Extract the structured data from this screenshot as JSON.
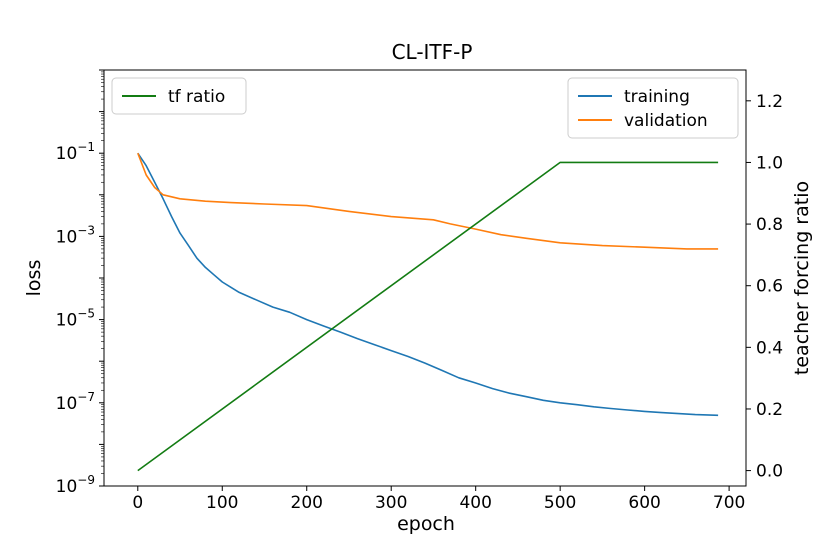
{
  "chart_data": {
    "type": "line",
    "title": "CL-ITF-P",
    "xlabel": "epoch",
    "ylabel_left": "loss",
    "ylabel_right": "teacher forcing ratio",
    "xlim": [
      -40,
      720
    ],
    "xticks": [
      0,
      100,
      200,
      300,
      400,
      500,
      600,
      700
    ],
    "xtick_labels": [
      "0",
      "100",
      "200",
      "300",
      "400",
      "500",
      "600",
      "700"
    ],
    "yscale_left": "log",
    "ylim_left": [
      1e-09,
      10
    ],
    "yticks_left_exponents": [
      -9,
      -7,
      -5,
      -3,
      -1
    ],
    "ylim_right": [
      -0.05,
      1.3
    ],
    "yticks_right": [
      0.0,
      0.2,
      0.4,
      0.6,
      0.8,
      1.0,
      1.2
    ],
    "ytick_right_labels": [
      "0.0",
      "0.2",
      "0.4",
      "0.6",
      "0.8",
      "1.0",
      "1.2"
    ],
    "grid": false,
    "legend_left": {
      "placement": "top-left",
      "entries": [
        {
          "name": "tf ratio",
          "color": "#137c13"
        }
      ]
    },
    "legend_right": {
      "placement": "top-right",
      "entries": [
        {
          "name": "training",
          "color": "#1f77b4"
        },
        {
          "name": "validation",
          "color": "#ff7f0e"
        }
      ]
    },
    "series": [
      {
        "name": "training",
        "axis": "left",
        "color": "#1f77b4",
        "x": [
          0,
          10,
          20,
          30,
          40,
          50,
          60,
          70,
          80,
          90,
          100,
          110,
          120,
          140,
          160,
          180,
          200,
          220,
          240,
          260,
          280,
          300,
          320,
          340,
          360,
          380,
          400,
          420,
          440,
          460,
          480,
          500,
          520,
          540,
          560,
          580,
          600,
          620,
          640,
          660,
          687
        ],
        "y": [
          0.1,
          0.05,
          0.02,
          0.008,
          0.003,
          0.0012,
          0.0006,
          0.0003,
          0.00018,
          0.00012,
          8e-05,
          6e-05,
          4.5e-05,
          3e-05,
          2e-05,
          1.5e-05,
          1e-05,
          7e-06,
          5e-06,
          3.5e-06,
          2.5e-06,
          1.8e-06,
          1.3e-06,
          9e-07,
          6e-07,
          4e-07,
          3e-07,
          2.2e-07,
          1.7e-07,
          1.4e-07,
          1.15e-07,
          1e-07,
          9e-08,
          8e-08,
          7.3e-08,
          6.7e-08,
          6.2e-08,
          5.8e-08,
          5.5e-08,
          5.2e-08,
          5e-08
        ]
      },
      {
        "name": "validation",
        "axis": "left",
        "color": "#ff7f0e",
        "x": [
          0,
          10,
          20,
          30,
          50,
          80,
          110,
          150,
          200,
          250,
          300,
          350,
          370,
          400,
          430,
          460,
          500,
          550,
          600,
          650,
          687
        ],
        "y": [
          0.1,
          0.03,
          0.015,
          0.01,
          0.008,
          0.007,
          0.0065,
          0.006,
          0.0055,
          0.004,
          0.003,
          0.0025,
          0.002,
          0.0015,
          0.0011,
          0.0009,
          0.0007,
          0.0006,
          0.00055,
          0.0005,
          0.0005
        ]
      },
      {
        "name": "tf ratio",
        "axis": "right",
        "color": "#137c13",
        "x": [
          0,
          500,
          687
        ],
        "y": [
          0.0,
          1.0,
          1.0
        ]
      }
    ]
  }
}
